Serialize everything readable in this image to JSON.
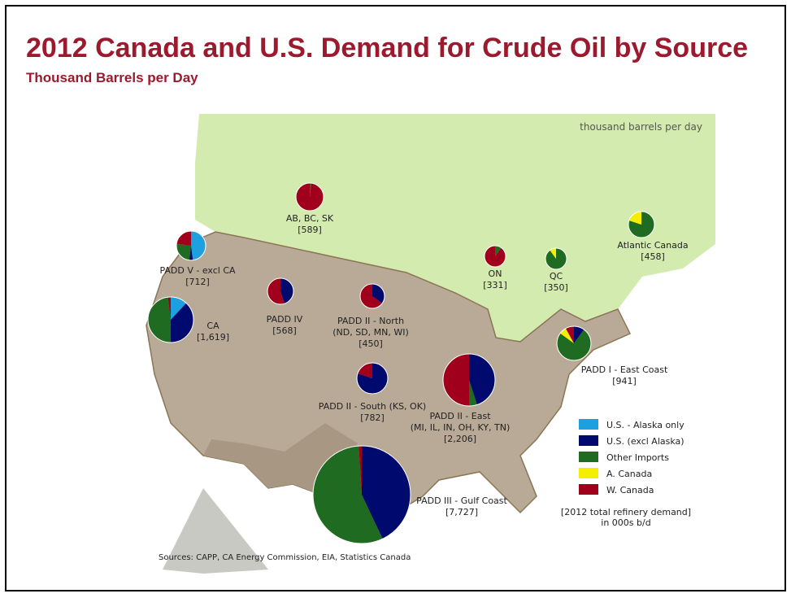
{
  "header": {
    "title": "2012 Canada and U.S. Demand for Crude Oil by Source",
    "subtitle": "Thousand Barrels per Day"
  },
  "map": {
    "unit_note": "thousand barrels per day",
    "sources": "Sources: CAPP, CA Energy Commission, EIA, Statistics Canada"
  },
  "legend": {
    "items": [
      {
        "label": "U.S. - Alaska only",
        "color": "#1ca0e0"
      },
      {
        "label": "U.S. (excl Alaska)",
        "color": "#000a6e"
      },
      {
        "label": "Other Imports",
        "color": "#1f6b21"
      },
      {
        "label": "A. Canada",
        "color": "#f4ee00"
      },
      {
        "label": "W. Canada",
        "color": "#a1001c"
      }
    ],
    "footnote": [
      "[2012 total refinery demand]",
      "in 000s b/d"
    ]
  },
  "regions": [
    {
      "name": [
        "AB, BC, SK"
      ],
      "demand": "[589]",
      "shares": [
        0,
        0,
        2,
        0,
        98
      ]
    },
    {
      "name": [
        "PADD V - excl CA"
      ],
      "demand": "[712]",
      "shares": [
        48,
        4,
        25,
        0,
        23
      ]
    },
    {
      "name": [
        "CA"
      ],
      "demand": "[1,619]",
      "shares": [
        12,
        38,
        48,
        0,
        2
      ]
    },
    {
      "name": [
        "PADD IV"
      ],
      "demand": "[568]",
      "shares": [
        0,
        45,
        0,
        0,
        55
      ]
    },
    {
      "name": [
        "PADD II - North",
        "(ND, SD, MN, WI)"
      ],
      "demand": "[450]",
      "shares": [
        0,
        35,
        0,
        0,
        65
      ]
    },
    {
      "name": [
        "PADD II - South (KS, OK)"
      ],
      "demand": "[782]",
      "shares": [
        0,
        80,
        0,
        0,
        20
      ]
    },
    {
      "name": [
        "PADD II - East",
        "(MI, IL, IN, OH, KY, TN)"
      ],
      "demand": "[2,206]",
      "shares": [
        0,
        45,
        5,
        0,
        50
      ]
    },
    {
      "name": [
        "PADD III - Gulf Coast"
      ],
      "demand": "[7,727]",
      "shares": [
        0,
        43,
        56,
        0,
        1
      ]
    },
    {
      "name": [
        "PADD I - East Coast"
      ],
      "demand": "[941]",
      "shares": [
        0,
        10,
        75,
        7,
        8
      ]
    },
    {
      "name": [
        "ON"
      ],
      "demand": "[331]",
      "shares": [
        0,
        0,
        10,
        0,
        90
      ]
    },
    {
      "name": [
        "QC"
      ],
      "demand": "[350]",
      "shares": [
        0,
        0,
        90,
        10,
        0
      ]
    },
    {
      "name": [
        "Atlantic Canada"
      ],
      "demand": "[458]",
      "shares": [
        0,
        0,
        80,
        20,
        0
      ]
    }
  ]
}
